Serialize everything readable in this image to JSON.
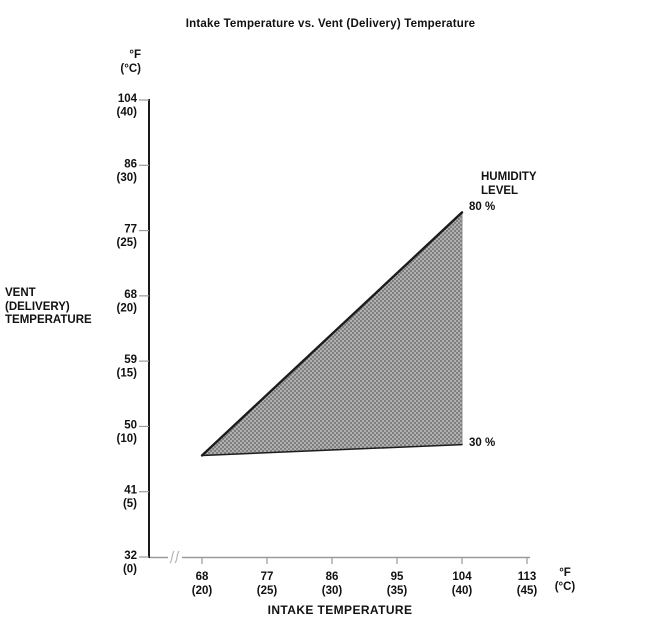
{
  "chart_data": {
    "type": "area",
    "title": "Intake Temperature vs. Vent (Delivery) Temperature",
    "xlabel": "INTAKE TEMPERATURE",
    "ylabel_lines": [
      "VENT",
      "(DELIVERY)",
      "TEMPERATURE"
    ],
    "y_unit_lines": [
      "°F",
      "(°C)"
    ],
    "x_unit_lines": [
      "°F",
      "(°C)"
    ],
    "humidity_header_lines": [
      "HUMIDITY",
      "LEVEL"
    ],
    "x_axis": {
      "axis_break_before_first_tick": true,
      "ticks": [
        {
          "value": 68,
          "label_f": "68",
          "label_c": "(20)"
        },
        {
          "value": 77,
          "label_f": "77",
          "label_c": "(25)"
        },
        {
          "value": 86,
          "label_f": "86",
          "label_c": "(30)"
        },
        {
          "value": 95,
          "label_f": "95",
          "label_c": "(35)"
        },
        {
          "value": 104,
          "label_f": "104",
          "label_c": "(40)"
        },
        {
          "value": 113,
          "label_f": "113",
          "label_c": "(45)"
        }
      ]
    },
    "y_axis": {
      "ticks": [
        {
          "value": 104,
          "label_f": "104",
          "label_c": "(40)"
        },
        {
          "value": 86,
          "label_f": "86",
          "label_c": "(30)"
        },
        {
          "value": 77,
          "label_f": "77",
          "label_c": "(25)"
        },
        {
          "value": 68,
          "label_f": "68",
          "label_c": "(20)"
        },
        {
          "value": 59,
          "label_f": "59",
          "label_c": "(15)"
        },
        {
          "value": 50,
          "label_f": "50",
          "label_c": "(10)"
        },
        {
          "value": 41,
          "label_f": "41",
          "label_c": "(5)"
        },
        {
          "value": 32,
          "label_f": "32",
          "label_c": "(0)"
        }
      ]
    },
    "series": [
      {
        "name": "80 %",
        "points_f": [
          [
            68,
            46
          ],
          [
            104,
            79.5
          ]
        ]
      },
      {
        "name": "30 %",
        "points_f": [
          [
            68,
            46
          ],
          [
            104,
            47.5
          ]
        ]
      }
    ],
    "region": {
      "description": "shaded operating band between 30% and 80% humidity lines",
      "points_f": [
        [
          68,
          46
        ],
        [
          104,
          79.5
        ],
        [
          104,
          47.5
        ]
      ],
      "fill": "halftone-gray",
      "avg_color": "#989898"
    },
    "colors": {
      "background": "#ffffff",
      "text": "#111111",
      "y_axis_line": "#1a1a1a",
      "x_axis_line": "#9a9a9a",
      "tick": "#9a9a9a",
      "series_line": "#1c1c1c",
      "region_base": "#b0b0b0",
      "region_dot": "#7f7f7f",
      "region_right_edge": "#8a8a8a",
      "break_mark": "#b5b5b5"
    }
  }
}
